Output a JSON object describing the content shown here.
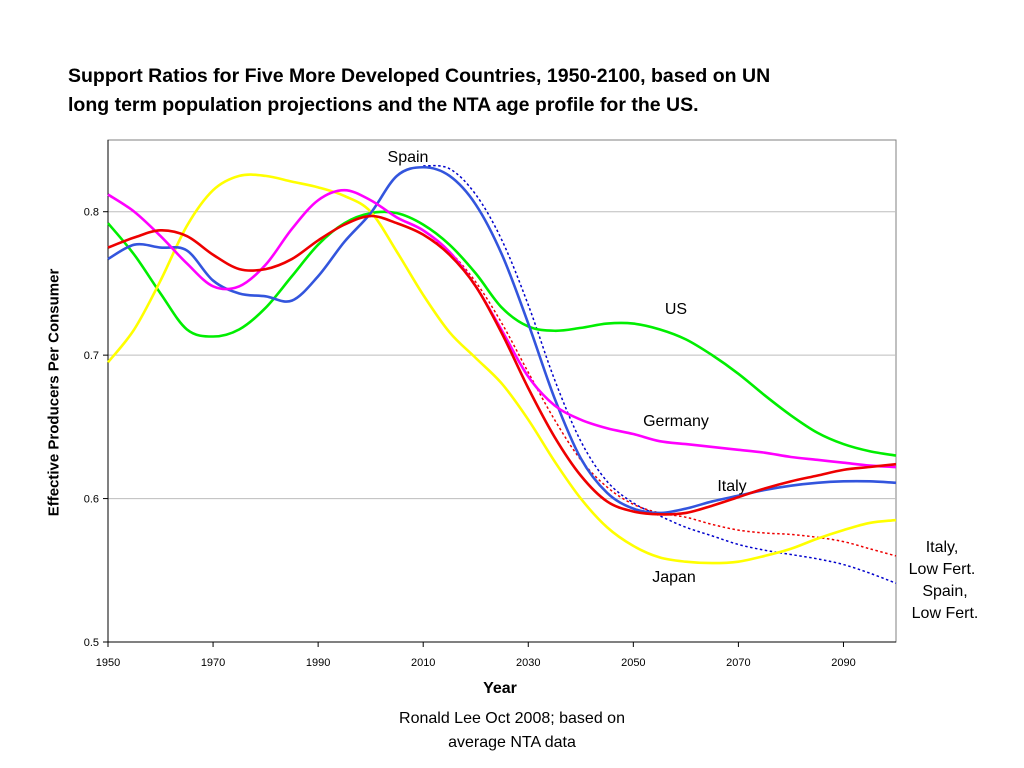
{
  "chart_data": {
    "type": "line",
    "title_lines": [
      "Support Ratios for Five More Developed Countries, 1950-2100, based on UN",
      "long term population projections and the NTA age profile for the US."
    ],
    "xlabel": "Year",
    "ylabel": "Effective Producers Per Consumer",
    "source_lines": [
      "Ronald Lee Oct 2008; based on",
      "average NTA data"
    ],
    "xlim": [
      1950,
      2100
    ],
    "ylim": [
      0.5,
      0.85
    ],
    "x_ticks": [
      1950,
      1970,
      1990,
      2010,
      2030,
      2050,
      2070,
      2090
    ],
    "y_ticks": [
      0.5,
      0.6,
      0.7,
      0.8
    ],
    "y_gridlines": [
      0.6,
      0.7,
      0.8
    ],
    "grid": true,
    "series": [
      {
        "name": "US",
        "color": "#00ee00",
        "style": "solid",
        "points": [
          [
            1950,
            0.792
          ],
          [
            1955,
            0.77
          ],
          [
            1960,
            0.743
          ],
          [
            1965,
            0.718
          ],
          [
            1970,
            0.713
          ],
          [
            1975,
            0.718
          ],
          [
            1980,
            0.733
          ],
          [
            1985,
            0.755
          ],
          [
            1990,
            0.777
          ],
          [
            1995,
            0.792
          ],
          [
            2000,
            0.799
          ],
          [
            2005,
            0.799
          ],
          [
            2010,
            0.791
          ],
          [
            2015,
            0.777
          ],
          [
            2020,
            0.757
          ],
          [
            2025,
            0.733
          ],
          [
            2030,
            0.72
          ],
          [
            2035,
            0.717
          ],
          [
            2040,
            0.719
          ],
          [
            2045,
            0.722
          ],
          [
            2050,
            0.722
          ],
          [
            2055,
            0.718
          ],
          [
            2060,
            0.711
          ],
          [
            2065,
            0.7
          ],
          [
            2070,
            0.687
          ],
          [
            2075,
            0.672
          ],
          [
            2080,
            0.658
          ],
          [
            2085,
            0.646
          ],
          [
            2090,
            0.638
          ],
          [
            2095,
            0.633
          ],
          [
            2100,
            0.63
          ]
        ]
      },
      {
        "name": "Germany",
        "color": "#ff00ff",
        "style": "solid",
        "points": [
          [
            1950,
            0.812
          ],
          [
            1955,
            0.8
          ],
          [
            1960,
            0.783
          ],
          [
            1965,
            0.764
          ],
          [
            1970,
            0.748
          ],
          [
            1975,
            0.748
          ],
          [
            1980,
            0.763
          ],
          [
            1985,
            0.788
          ],
          [
            1990,
            0.808
          ],
          [
            1995,
            0.815
          ],
          [
            2000,
            0.808
          ],
          [
            2005,
            0.796
          ],
          [
            2010,
            0.787
          ],
          [
            2015,
            0.772
          ],
          [
            2020,
            0.748
          ],
          [
            2025,
            0.717
          ],
          [
            2030,
            0.685
          ],
          [
            2035,
            0.665
          ],
          [
            2040,
            0.655
          ],
          [
            2045,
            0.649
          ],
          [
            2050,
            0.645
          ],
          [
            2055,
            0.64
          ],
          [
            2060,
            0.638
          ],
          [
            2065,
            0.636
          ],
          [
            2070,
            0.634
          ],
          [
            2075,
            0.632
          ],
          [
            2080,
            0.629
          ],
          [
            2085,
            0.627
          ],
          [
            2090,
            0.625
          ],
          [
            2095,
            0.623
          ],
          [
            2100,
            0.622
          ]
        ]
      },
      {
        "name": "Italy",
        "color": "#ee0000",
        "style": "solid",
        "points": [
          [
            1950,
            0.775
          ],
          [
            1955,
            0.782
          ],
          [
            1960,
            0.787
          ],
          [
            1965,
            0.783
          ],
          [
            1970,
            0.77
          ],
          [
            1975,
            0.76
          ],
          [
            1980,
            0.76
          ],
          [
            1985,
            0.767
          ],
          [
            1990,
            0.78
          ],
          [
            1995,
            0.791
          ],
          [
            2000,
            0.797
          ],
          [
            2005,
            0.792
          ],
          [
            2010,
            0.784
          ],
          [
            2015,
            0.77
          ],
          [
            2020,
            0.748
          ],
          [
            2025,
            0.715
          ],
          [
            2030,
            0.677
          ],
          [
            2035,
            0.643
          ],
          [
            2040,
            0.616
          ],
          [
            2045,
            0.598
          ],
          [
            2050,
            0.591
          ],
          [
            2055,
            0.589
          ],
          [
            2060,
            0.59
          ],
          [
            2065,
            0.595
          ],
          [
            2070,
            0.601
          ],
          [
            2075,
            0.607
          ],
          [
            2080,
            0.612
          ],
          [
            2085,
            0.616
          ],
          [
            2090,
            0.62
          ],
          [
            2095,
            0.622
          ],
          [
            2100,
            0.624
          ]
        ]
      },
      {
        "name": "Japan",
        "color": "#ffff00",
        "style": "solid",
        "points": [
          [
            1950,
            0.695
          ],
          [
            1955,
            0.718
          ],
          [
            1960,
            0.752
          ],
          [
            1965,
            0.79
          ],
          [
            1970,
            0.815
          ],
          [
            1975,
            0.825
          ],
          [
            1980,
            0.825
          ],
          [
            1985,
            0.821
          ],
          [
            1990,
            0.817
          ],
          [
            1995,
            0.811
          ],
          [
            2000,
            0.8
          ],
          [
            2005,
            0.772
          ],
          [
            2010,
            0.742
          ],
          [
            2015,
            0.716
          ],
          [
            2020,
            0.698
          ],
          [
            2025,
            0.68
          ],
          [
            2030,
            0.655
          ],
          [
            2035,
            0.626
          ],
          [
            2040,
            0.6
          ],
          [
            2045,
            0.58
          ],
          [
            2050,
            0.567
          ],
          [
            2055,
            0.559
          ],
          [
            2060,
            0.556
          ],
          [
            2065,
            0.555
          ],
          [
            2070,
            0.556
          ],
          [
            2075,
            0.56
          ],
          [
            2080,
            0.565
          ],
          [
            2085,
            0.572
          ],
          [
            2090,
            0.578
          ],
          [
            2095,
            0.583
          ],
          [
            2100,
            0.585
          ]
        ]
      },
      {
        "name": "Spain",
        "color": "#3355dd",
        "style": "solid",
        "points": [
          [
            1950,
            0.767
          ],
          [
            1955,
            0.777
          ],
          [
            1960,
            0.775
          ],
          [
            1965,
            0.773
          ],
          [
            1970,
            0.752
          ],
          [
            1975,
            0.743
          ],
          [
            1980,
            0.741
          ],
          [
            1985,
            0.738
          ],
          [
            1990,
            0.755
          ],
          [
            1995,
            0.779
          ],
          [
            2000,
            0.799
          ],
          [
            2005,
            0.825
          ],
          [
            2010,
            0.831
          ],
          [
            2015,
            0.825
          ],
          [
            2020,
            0.805
          ],
          [
            2025,
            0.77
          ],
          [
            2030,
            0.722
          ],
          [
            2035,
            0.67
          ],
          [
            2040,
            0.628
          ],
          [
            2045,
            0.604
          ],
          [
            2050,
            0.593
          ],
          [
            2055,
            0.59
          ],
          [
            2060,
            0.593
          ],
          [
            2065,
            0.598
          ],
          [
            2070,
            0.602
          ],
          [
            2075,
            0.606
          ],
          [
            2080,
            0.609
          ],
          [
            2085,
            0.611
          ],
          [
            2090,
            0.612
          ],
          [
            2095,
            0.612
          ],
          [
            2100,
            0.611
          ]
        ]
      },
      {
        "name": "Italy, Low Fert.",
        "color": "#ee0000",
        "style": "dotted",
        "points": [
          [
            2010,
            0.784
          ],
          [
            2015,
            0.772
          ],
          [
            2020,
            0.751
          ],
          [
            2025,
            0.722
          ],
          [
            2030,
            0.688
          ],
          [
            2035,
            0.655
          ],
          [
            2040,
            0.627
          ],
          [
            2045,
            0.608
          ],
          [
            2050,
            0.596
          ],
          [
            2055,
            0.59
          ],
          [
            2060,
            0.587
          ],
          [
            2065,
            0.582
          ],
          [
            2070,
            0.578
          ],
          [
            2075,
            0.576
          ],
          [
            2080,
            0.575
          ],
          [
            2085,
            0.573
          ],
          [
            2090,
            0.57
          ],
          [
            2095,
            0.565
          ],
          [
            2100,
            0.56
          ]
        ]
      },
      {
        "name": "Spain, Low Fert.",
        "color": "#0000cc",
        "style": "dotted",
        "points": [
          [
            2010,
            0.832
          ],
          [
            2015,
            0.83
          ],
          [
            2020,
            0.812
          ],
          [
            2025,
            0.78
          ],
          [
            2030,
            0.735
          ],
          [
            2035,
            0.683
          ],
          [
            2040,
            0.64
          ],
          [
            2045,
            0.612
          ],
          [
            2050,
            0.597
          ],
          [
            2055,
            0.588
          ],
          [
            2060,
            0.58
          ],
          [
            2065,
            0.574
          ],
          [
            2070,
            0.568
          ],
          [
            2075,
            0.564
          ],
          [
            2080,
            0.561
          ],
          [
            2085,
            0.558
          ],
          [
            2090,
            0.554
          ],
          [
            2095,
            0.548
          ],
          [
            2100,
            0.541
          ]
        ]
      }
    ],
    "annotations": [
      {
        "lines": [
          "Spain"
        ],
        "series": "Spain"
      },
      {
        "lines": [
          "US"
        ],
        "series": "US"
      },
      {
        "lines": [
          "Germany"
        ],
        "series": "Germany"
      },
      {
        "lines": [
          "Italy"
        ],
        "series": "Italy"
      },
      {
        "lines": [
          "Japan"
        ],
        "series": "Japan"
      },
      {
        "lines": [
          "Italy,",
          "Low Fert."
        ],
        "series": "Italy, Low Fert."
      },
      {
        "lines": [
          "Spain,",
          "Low Fert."
        ],
        "series": "Spain, Low Fert."
      }
    ]
  }
}
